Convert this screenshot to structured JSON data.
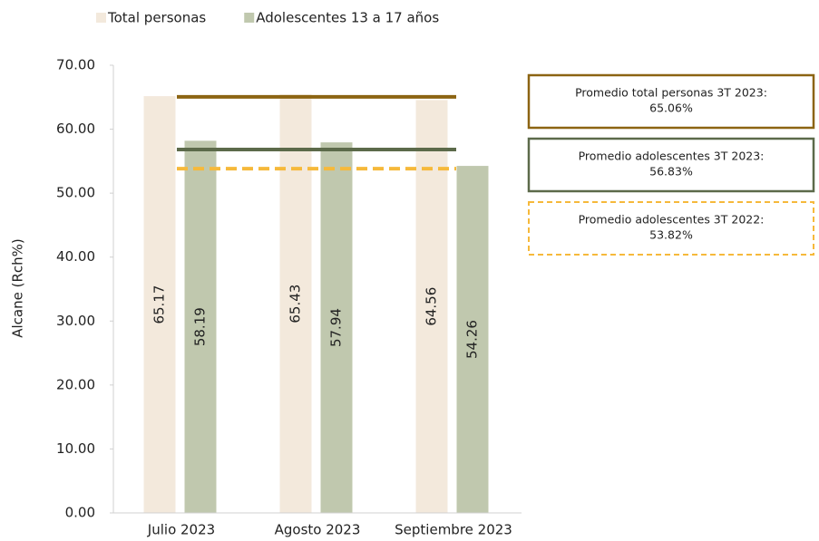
{
  "chart_data": {
    "type": "bar",
    "categories": [
      "Julio 2023",
      "Agosto 2023",
      "Septiembre 2023"
    ],
    "series": [
      {
        "name": "Total personas",
        "color": "#f3e9dc",
        "values": [
          65.17,
          65.43,
          64.56
        ]
      },
      {
        "name": "Adolescentes 13 a 17 años",
        "color": "#c0c8ae",
        "values": [
          58.19,
          57.94,
          54.26
        ]
      }
    ],
    "ylabel": "Alcane (Rch%)",
    "ylim": [
      0,
      70
    ],
    "yticks": [
      {
        "value": 0,
        "label": "0.00"
      },
      {
        "value": 10,
        "label": "10.00"
      },
      {
        "value": 20,
        "label": "20.00"
      },
      {
        "value": 30,
        "label": "30.00"
      },
      {
        "value": 40,
        "label": "40.00"
      },
      {
        "value": 50,
        "label": "50.00"
      },
      {
        "value": 60,
        "label": "60.00"
      },
      {
        "value": 70,
        "label": "70.00"
      }
    ],
    "legend": "top",
    "reference_lines": [
      {
        "text": "Promedio total personas 3T 2023:",
        "value": 65.06,
        "label": "65.06%",
        "color": "#8c6412",
        "style": "solid"
      },
      {
        "text": "Promedio adolescentes 3T 2023:",
        "value": 56.83,
        "label": "56.83%",
        "color": "#5c6a4a",
        "style": "solid"
      },
      {
        "text": "Promedio adolescentes 3T 2022:",
        "value": 53.82,
        "label": "53.82%",
        "color": "#f6b93b",
        "style": "dashed"
      }
    ]
  }
}
